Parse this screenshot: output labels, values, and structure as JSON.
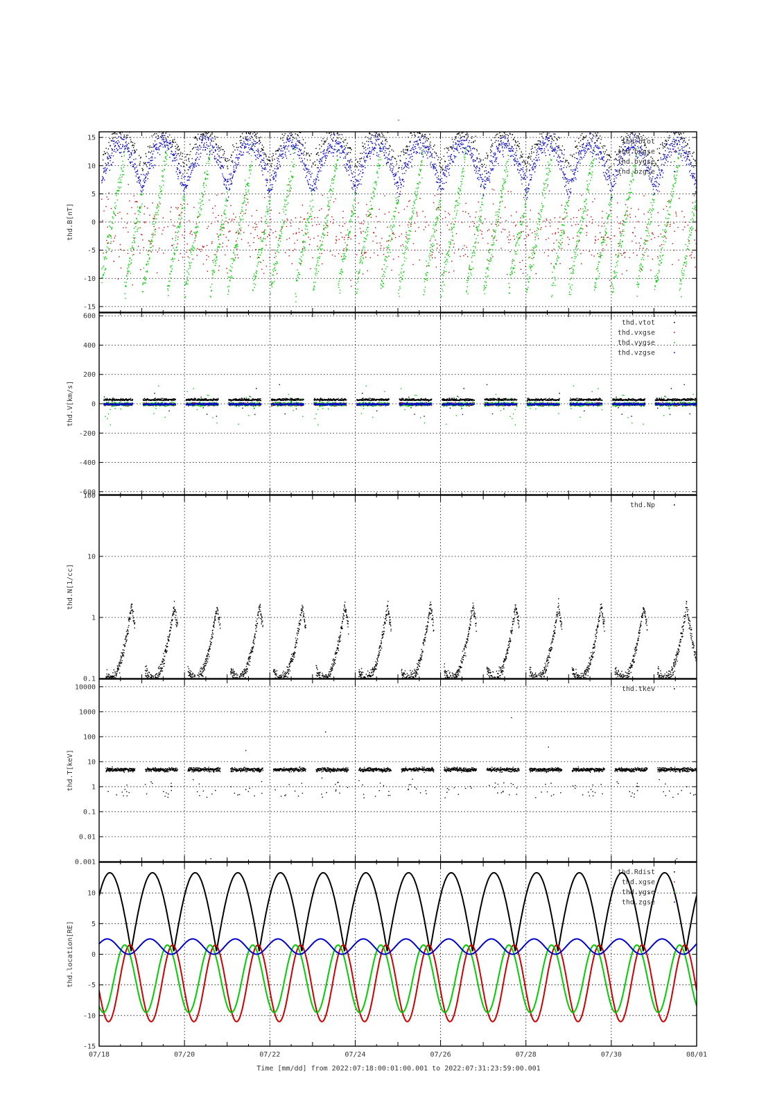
{
  "figure_title": "-",
  "time_label": "Time [mm/dd]  from 2022:07:18:00:01:00.001  to  2022:07:31:23:59:00.001",
  "chart_data": [
    {
      "type": "scatter",
      "ylabel": "thd.B[nT]",
      "xlim": [
        "2022-07-18",
        "2022-08-01"
      ],
      "ylim": [
        -16,
        16
      ],
      "yscale": "linear",
      "yticks": [
        -15,
        -10,
        -5,
        0,
        5,
        10,
        15
      ],
      "ytick_labels": [
        "-15",
        "-10",
        "-5",
        "0",
        "5",
        "10",
        "15"
      ],
      "grid": true,
      "legend_position": "top-right",
      "series": [
        {
          "name": "thd.btot",
          "color": "#000000",
          "note_shape": "scatter"
        },
        {
          "name": "thd.bxgse",
          "color": "#cc0000"
        },
        {
          "name": "thd.bygse",
          "color": "#00cc00"
        },
        {
          "name": "thd.bzgse",
          "color": "#0000cc"
        }
      ]
    },
    {
      "type": "scatter",
      "ylabel": "thd.V[km/s]",
      "xlim": [
        "2022-07-18",
        "2022-08-01"
      ],
      "ylim": [
        -620,
        620
      ],
      "yscale": "linear",
      "yticks": [
        -600,
        -400,
        -200,
        0,
        200,
        400,
        600
      ],
      "ytick_labels": [
        "-600",
        "-400",
        "-200",
        "0",
        "200",
        "400",
        "600"
      ],
      "grid": true,
      "legend_position": "top-right",
      "series": [
        {
          "name": "thd.vtot",
          "color": "#000000"
        },
        {
          "name": "thd.vxgse",
          "color": "#cc0000"
        },
        {
          "name": "thd.vygse",
          "color": "#00cc00"
        },
        {
          "name": "thd.vzgse",
          "color": "#0000cc"
        }
      ]
    },
    {
      "type": "scatter",
      "ylabel": "thd.N[1/cc]",
      "xlim": [
        "2022-07-18",
        "2022-08-01"
      ],
      "ylim": [
        0.1,
        100
      ],
      "yscale": "log",
      "yticks": [
        0.1,
        1,
        10,
        100
      ],
      "ytick_labels": [
        "0.1",
        "1",
        "10",
        "100"
      ],
      "grid": true,
      "legend_position": "top-right",
      "series": [
        {
          "name": "thd.Np",
          "color": "#000000"
        }
      ]
    },
    {
      "type": "scatter",
      "ylabel": "thd.T[keV]",
      "xlim": [
        "2022-07-18",
        "2022-08-01"
      ],
      "ylim": [
        0.001,
        20000
      ],
      "yscale": "log",
      "yticks": [
        0.001,
        0.01,
        0.1,
        1,
        10,
        100,
        1000,
        10000
      ],
      "ytick_labels": [
        "0.001",
        "0.01",
        "0.1",
        "1",
        "10",
        "100",
        "1000",
        "10000"
      ],
      "grid": true,
      "legend_position": "top-right",
      "series": [
        {
          "name": "thd.tkev",
          "color": "#000000"
        }
      ]
    },
    {
      "type": "line",
      "ylabel": "thd.location[RE]",
      "xlim": [
        "2022-07-18",
        "2022-08-01"
      ],
      "ylim": [
        -15,
        15
      ],
      "yscale": "linear",
      "yticks": [
        -15,
        -10,
        -5,
        0,
        5,
        10
      ],
      "ytick_labels": [
        "-15",
        "-10",
        "-5",
        "0",
        "5",
        "10"
      ],
      "grid": true,
      "legend_position": "top-right",
      "orbit_period_days": 1.0,
      "series": [
        {
          "name": "thd.Rdist",
          "color": "#000000",
          "min": 0.5,
          "max": 13.3
        },
        {
          "name": "thd.xgse",
          "color": "#cc0000",
          "min": -11,
          "max": 1.5
        },
        {
          "name": "thd.ygse",
          "color": "#00cc00",
          "min": -9.5,
          "max": 1.5
        },
        {
          "name": "thd.zgse",
          "color": "#0000cc",
          "min": 0,
          "max": 2.5
        }
      ]
    }
  ],
  "x_axis": {
    "tick_labels": [
      "07/18",
      "07/20",
      "07/22",
      "07/24",
      "07/26",
      "07/28",
      "07/30",
      "08/01"
    ],
    "tick_days": [
      0,
      2,
      4,
      6,
      8,
      10,
      12,
      14
    ]
  }
}
